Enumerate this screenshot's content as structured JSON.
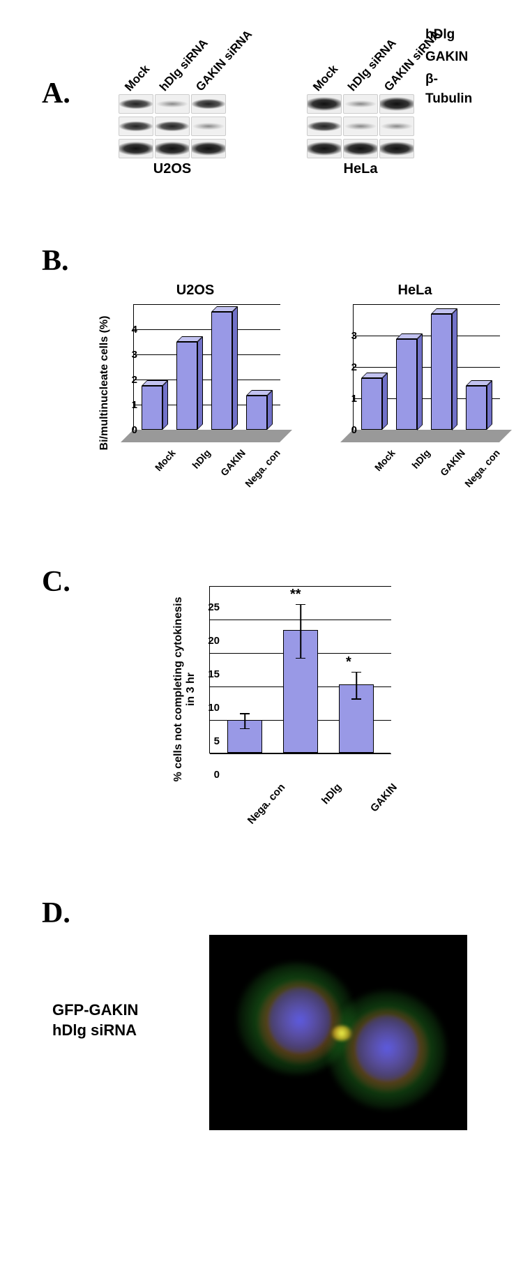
{
  "panels": {
    "A": "A.",
    "B": "B.",
    "C": "C.",
    "D": "D."
  },
  "panelA": {
    "col_labels": [
      "Mock",
      "hDlg siRNA",
      "GAKIN siRNA"
    ],
    "cell_lines": {
      "left": "U2OS",
      "right": "HeLa"
    },
    "row_labels": [
      "hDlg",
      "GAKIN",
      "β-Tubulin"
    ]
  },
  "panelB": {
    "y_label": "Bi/multinucleate cells (%)",
    "left": {
      "title": "U2OS",
      "categories": [
        "Mock",
        "hDlg",
        "GAKIN",
        "Nega. con"
      ],
      "values": [
        1.75,
        3.5,
        4.7,
        1.35
      ],
      "ymax": 4.7,
      "yticks": [
        0,
        1,
        2,
        3,
        4
      ],
      "bar_color": "#9999e6"
    },
    "right": {
      "title": "HeLa",
      "categories": [
        "Mock",
        "hDlg",
        "GAKIN",
        "Nega. con"
      ],
      "values": [
        1.65,
        2.9,
        3.7,
        1.4
      ],
      "ymax": 3.7,
      "yticks": [
        0,
        1,
        2,
        3
      ],
      "bar_color": "#9999e6"
    }
  },
  "panelC": {
    "y_label": "% cells not completing cytokinesis in 3 hr",
    "categories": [
      "Nega. con",
      "hDlg",
      "GAKIN"
    ],
    "values": [
      4.9,
      18.3,
      10.2
    ],
    "err_low": [
      1.1,
      4.0,
      2.0
    ],
    "err_high": [
      1.1,
      4.0,
      2.0
    ],
    "sig": [
      "",
      "**",
      "*"
    ],
    "ymax": 25,
    "yticks": [
      0,
      5,
      10,
      15,
      20,
      25
    ],
    "bar_color": "#9999e6"
  },
  "panelD": {
    "caption1": "GFP-GAKIN",
    "caption2": "hDlg siRNA"
  },
  "colors": {
    "bar_fill": "#9999e6",
    "bar_top": "#c2c2f0",
    "bar_side": "#7272c8",
    "floor": "#999999",
    "bg": "#ffffff",
    "text": "#000000"
  }
}
